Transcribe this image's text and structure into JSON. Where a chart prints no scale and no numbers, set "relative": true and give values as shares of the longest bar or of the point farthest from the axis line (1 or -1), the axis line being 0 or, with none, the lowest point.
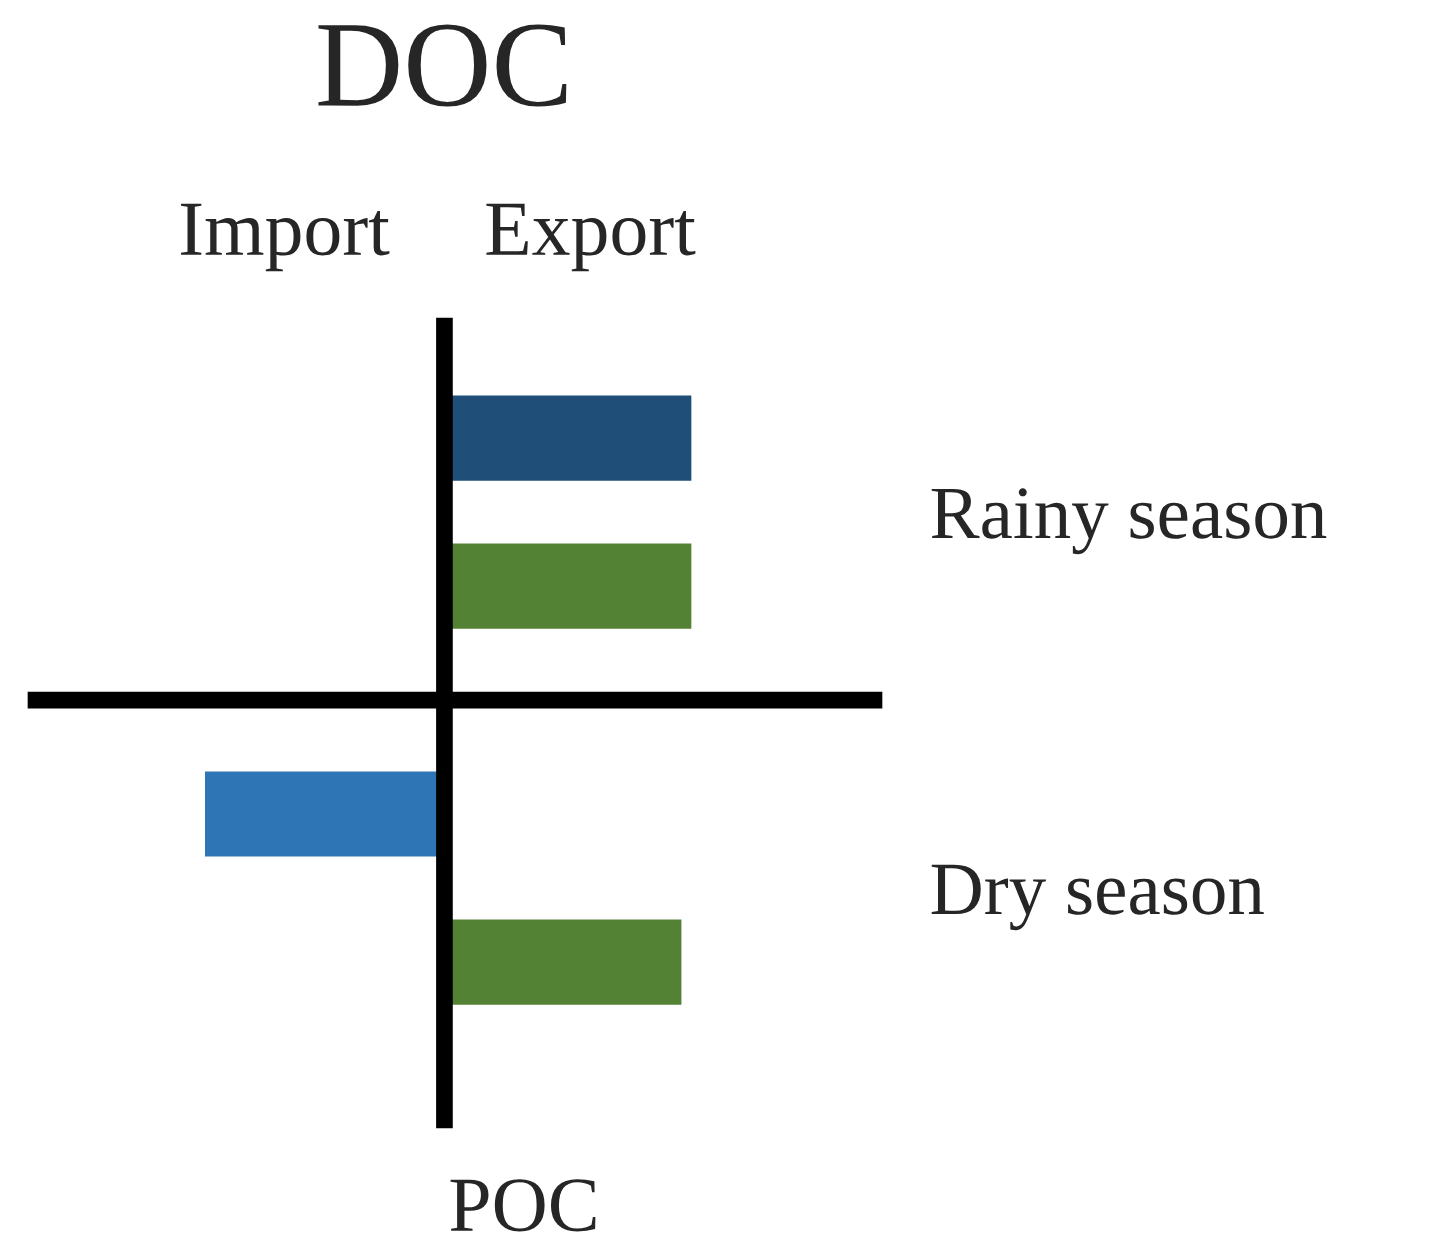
{
  "chart_data": {
    "type": "bar",
    "orientation": "horizontal",
    "relative": true,
    "tick_labels": "y",
    "grid": false,
    "legend": false,
    "categories": [
      "Rainy season",
      "Dry season"
    ],
    "series": [
      {
        "colors": [
          "#1f4e79",
          "#2e75b6"
        ],
        "values": [
          1,
          -0.97
        ]
      },
      {
        "color": "#548235",
        "values": [
          1,
          0.96
        ]
      }
    ],
    "annotations": [
      "DOC",
      "Import",
      "Export",
      "POC"
    ]
  }
}
